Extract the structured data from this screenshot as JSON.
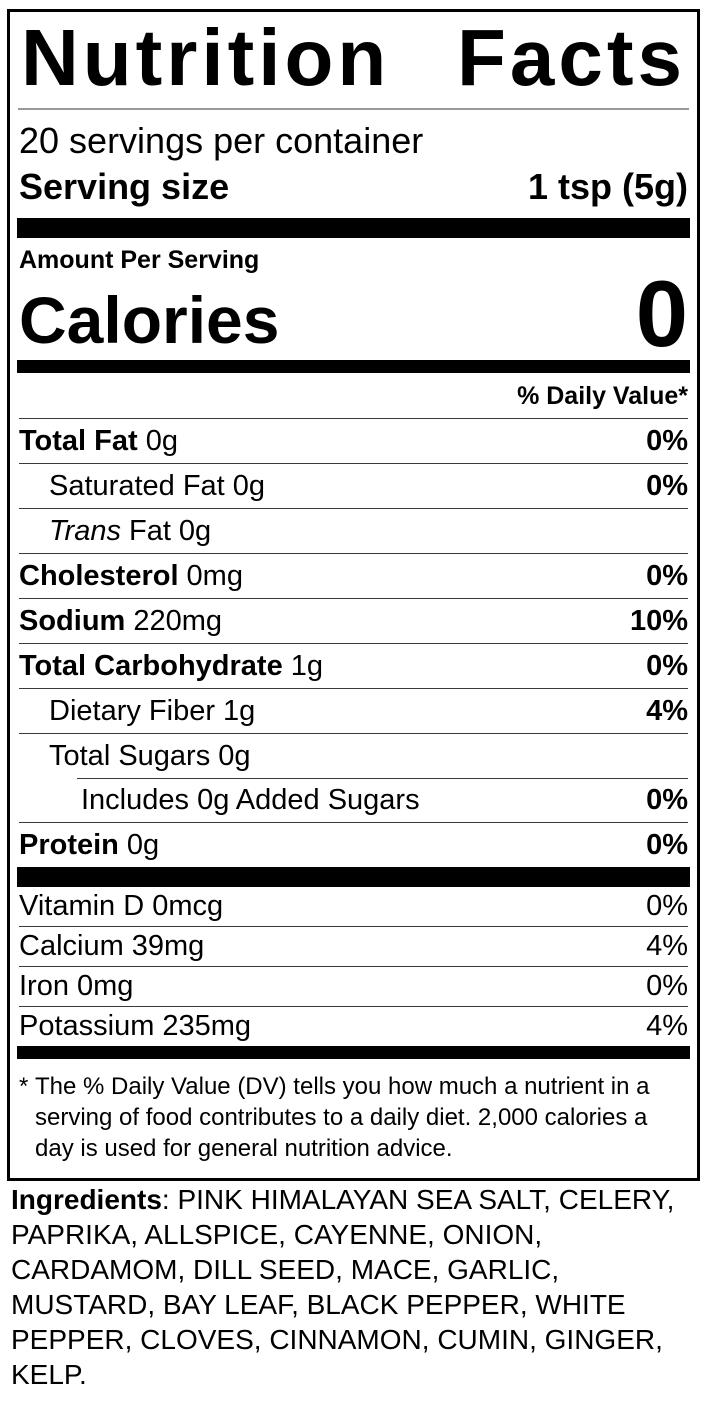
{
  "nutrition_label": {
    "title_words": [
      "Nutrition",
      "Facts"
    ],
    "servings_per_container": "20 servings per container",
    "serving_size": {
      "label": "Serving size",
      "value": "1 tsp (5g)"
    },
    "amount_per_serving": "Amount Per Serving",
    "calories": {
      "label": "Calories",
      "value": "0"
    },
    "daily_value_header": "% Daily Value*",
    "nutrients": [
      {
        "name": "Total Fat",
        "amount": "0g",
        "dv": "0%",
        "bold": true,
        "indent": 0
      },
      {
        "name": "Saturated Fat",
        "amount": "0g",
        "dv": "0%",
        "bold": false,
        "indent": 1
      },
      {
        "italic_prefix": "Trans",
        "name": "Fat",
        "amount": "0g",
        "dv": "",
        "bold": false,
        "indent": 1
      },
      {
        "name": "Cholesterol",
        "amount": "0mg",
        "dv": "0%",
        "bold": true,
        "indent": 0
      },
      {
        "name": "Sodium",
        "amount": "220mg",
        "dv": "10%",
        "bold": true,
        "indent": 0
      },
      {
        "name": "Total Carbohydrate",
        "amount": "1g",
        "dv": "0%",
        "bold": true,
        "indent": 0
      },
      {
        "name": "Dietary Fiber",
        "amount": "1g",
        "dv": "4%",
        "bold": false,
        "indent": 1
      },
      {
        "name": "Total Sugars",
        "amount": "0g",
        "dv": "",
        "bold": false,
        "indent": 1
      },
      {
        "name": "Includes 0g Added Sugars",
        "amount": "",
        "dv": "0%",
        "bold": false,
        "indent": 2
      },
      {
        "name": "Protein",
        "amount": "0g",
        "dv": "0%",
        "bold": true,
        "indent": 0
      }
    ],
    "vitamins": [
      {
        "name": "Vitamin D",
        "amount": "0mcg",
        "dv": "0%"
      },
      {
        "name": "Calcium",
        "amount": "39mg",
        "dv": "4%"
      },
      {
        "name": "Iron",
        "amount": "0mg",
        "dv": "0%"
      },
      {
        "name": "Potassium",
        "amount": "235mg",
        "dv": "4%"
      }
    ],
    "footnote_marker": "*",
    "footnote": "The % Daily Value (DV) tells you how much a nutrient in a serving of food contributes to a daily diet. 2,000 calories a day is used for general nutrition advice."
  },
  "ingredients": {
    "label": "Ingredients",
    "text": ": PINK HIMALAYAN SEA SALT, CELERY, PAPRIKA, ALLSPICE, CAYENNE, ONION, CARDAMOM, DILL SEED, MACE, GARLIC, MUSTARD, BAY LEAF, BLACK PEPPER, WHITE PEPPER, CLOVES, CINNAMON, CUMIN, GINGER, KELP."
  },
  "colors": {
    "text": "#000000",
    "bar": "#000000",
    "hairline": "#3a3a3a",
    "title_underline": "#999999",
    "background": "#ffffff"
  }
}
